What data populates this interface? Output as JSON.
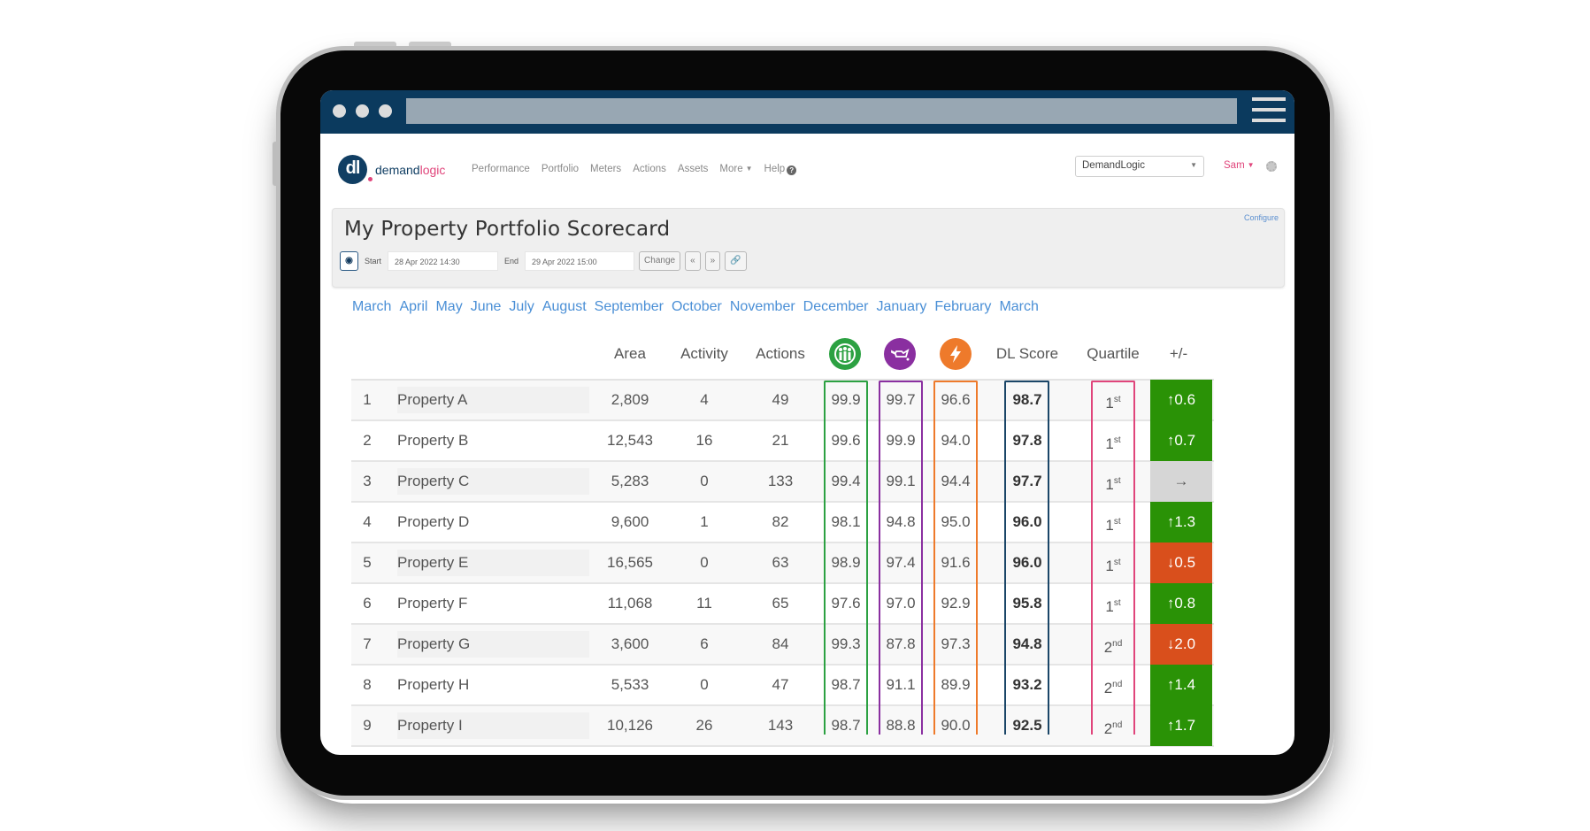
{
  "browser": {
    "menu_icon": "hamburger-icon"
  },
  "navbar": {
    "logo_mark": "dl",
    "logo_text_primary": "demand",
    "logo_text_accent": "logic",
    "links": [
      {
        "label": "Performance"
      },
      {
        "label": "Portfolio"
      },
      {
        "label": "Meters"
      },
      {
        "label": "Actions"
      },
      {
        "label": "Assets"
      },
      {
        "label": "More",
        "dropdown": true
      },
      {
        "label": "Help",
        "icon": "question-circle-icon"
      }
    ],
    "org_select": {
      "value": "DemandLogic"
    },
    "user": {
      "label": "Sam"
    },
    "settings_icon": "gear-icon"
  },
  "header": {
    "title": "My Property Portfolio Scorecard",
    "configure_label": "Configure",
    "toolbar": {
      "view_icon": "eye-icon",
      "start_label": "Start",
      "start_value": "28 Apr 2022 14:30",
      "end_label": "End",
      "end_value": "29 Apr 2022 15:00",
      "change_label": "Change",
      "prev_label": "«",
      "next_label": "»",
      "link_icon": "link-icon"
    }
  },
  "months": [
    "March",
    "April",
    "May",
    "June",
    "July",
    "August",
    "September",
    "October",
    "November",
    "December",
    "January",
    "February",
    "March"
  ],
  "colors": {
    "browser_bar": "#0b3a5e",
    "green": "#2ca142",
    "purple": "#8a2fa0",
    "orange": "#ee7a2b",
    "dl_score_border": "#1b4668",
    "quartile_border": "#e0457b",
    "delta_up": "#2a9206",
    "delta_down": "#d94f1c",
    "delta_flat": "#d6d6d6",
    "month_link": "#4a8fd6"
  },
  "table": {
    "columns": {
      "area": "Area",
      "activity": "Activity",
      "actions": "Actions",
      "occupant_icon": "people-icon",
      "maintenance_icon": "oil-can-icon",
      "energy_icon": "lightning-bolt-icon",
      "dl_score": "DL Score",
      "quartile": "Quartile",
      "delta": "+/-"
    },
    "rows": [
      {
        "rank": "1",
        "name": "Property A",
        "area": "2,809",
        "activity": "4",
        "actions": "49",
        "occupant": "99.9",
        "maintenance": "99.7",
        "energy": "96.6",
        "dl_score": "98.7",
        "quartile_num": "1",
        "quartile_suffix": "st",
        "delta": "↑0.6",
        "delta_dir": "up"
      },
      {
        "rank": "2",
        "name": "Property B",
        "area": "12,543",
        "activity": "16",
        "actions": "21",
        "occupant": "99.6",
        "maintenance": "99.9",
        "energy": "94.0",
        "dl_score": "97.8",
        "quartile_num": "1",
        "quartile_suffix": "st",
        "delta": "↑0.7",
        "delta_dir": "up"
      },
      {
        "rank": "3",
        "name": "Property C",
        "area": "5,283",
        "activity": "0",
        "actions": "133",
        "occupant": "99.4",
        "maintenance": "99.1",
        "energy": "94.4",
        "dl_score": "97.7",
        "quartile_num": "1",
        "quartile_suffix": "st",
        "delta": "→",
        "delta_dir": "flat"
      },
      {
        "rank": "4",
        "name": "Property D",
        "area": "9,600",
        "activity": "1",
        "actions": "82",
        "occupant": "98.1",
        "maintenance": "94.8",
        "energy": "95.0",
        "dl_score": "96.0",
        "quartile_num": "1",
        "quartile_suffix": "st",
        "delta": "↑1.3",
        "delta_dir": "up"
      },
      {
        "rank": "5",
        "name": "Property E",
        "area": "16,565",
        "activity": "0",
        "actions": "63",
        "occupant": "98.9",
        "maintenance": "97.4",
        "energy": "91.6",
        "dl_score": "96.0",
        "quartile_num": "1",
        "quartile_suffix": "st",
        "delta": "↓0.5",
        "delta_dir": "down"
      },
      {
        "rank": "6",
        "name": "Property F",
        "area": "11,068",
        "activity": "11",
        "actions": "65",
        "occupant": "97.6",
        "maintenance": "97.0",
        "energy": "92.9",
        "dl_score": "95.8",
        "quartile_num": "1",
        "quartile_suffix": "st",
        "delta": "↑0.8",
        "delta_dir": "up"
      },
      {
        "rank": "7",
        "name": "Property G",
        "area": "3,600",
        "activity": "6",
        "actions": "84",
        "occupant": "99.3",
        "maintenance": "87.8",
        "energy": "97.3",
        "dl_score": "94.8",
        "quartile_num": "2",
        "quartile_suffix": "nd",
        "delta": "↓2.0",
        "delta_dir": "down"
      },
      {
        "rank": "8",
        "name": "Property H",
        "area": "5,533",
        "activity": "0",
        "actions": "47",
        "occupant": "98.7",
        "maintenance": "91.1",
        "energy": "89.9",
        "dl_score": "93.2",
        "quartile_num": "2",
        "quartile_suffix": "nd",
        "delta": "↑1.4",
        "delta_dir": "up"
      },
      {
        "rank": "9",
        "name": "Property I",
        "area": "10,126",
        "activity": "26",
        "actions": "143",
        "occupant": "98.7",
        "maintenance": "88.8",
        "energy": "90.0",
        "dl_score": "92.5",
        "quartile_num": "2",
        "quartile_suffix": "nd",
        "delta": "↑1.7",
        "delta_dir": "up"
      }
    ]
  }
}
